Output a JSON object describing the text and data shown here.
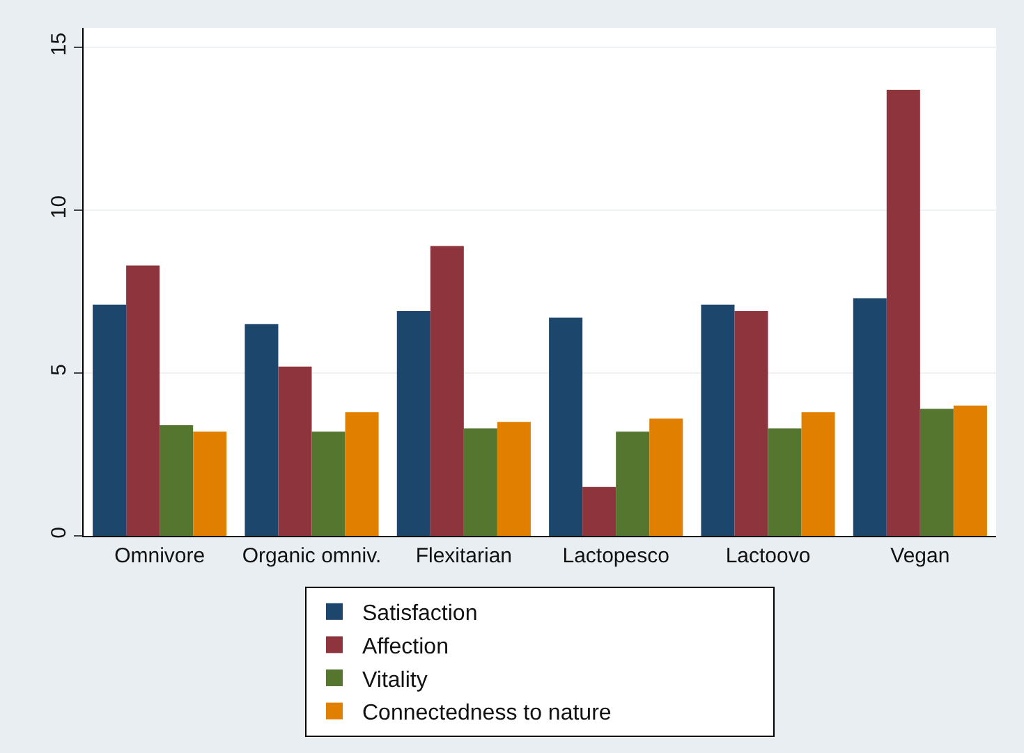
{
  "chart_data": {
    "type": "bar",
    "categories": [
      "Omnivore",
      "Organic omniv.",
      "Flexitarian",
      "Lactopesco",
      "Lactoovo",
      "Vegan"
    ],
    "series": [
      {
        "name": "Satisfaction",
        "color": "#1c466c",
        "values": [
          7.1,
          6.5,
          6.9,
          6.7,
          7.1,
          7.3
        ]
      },
      {
        "name": "Affection",
        "color": "#8e343c",
        "values": [
          8.3,
          5.2,
          8.9,
          1.5,
          6.9,
          13.7
        ]
      },
      {
        "name": "Vitality",
        "color": "#55762f",
        "values": [
          3.4,
          3.2,
          3.3,
          3.2,
          3.3,
          3.9
        ]
      },
      {
        "name": "Connectedness to nature",
        "color": "#e07f00",
        "values": [
          3.2,
          3.8,
          3.5,
          3.6,
          3.8,
          4.0
        ]
      }
    ],
    "ylim": [
      0,
      15.6
    ],
    "yticks": [
      0,
      5,
      10,
      15
    ],
    "grid": "y",
    "legend": "bottom"
  }
}
